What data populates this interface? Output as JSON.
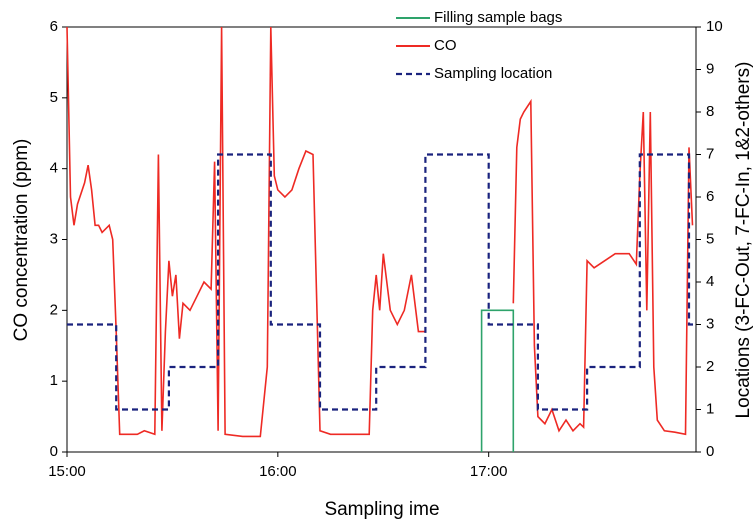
{
  "chart_data": {
    "type": "line",
    "xlabel": "Sampling ime",
    "ylabel": "CO concentration (ppm)",
    "y2label": "Locations (3-FC-Out, 7-FC-In, 1&2-others)",
    "xlim": [
      "15:00",
      "17:59"
    ],
    "xticks": [
      "15:00",
      "16:00",
      "17:00"
    ],
    "ylim": [
      0,
      6
    ],
    "yticks": [
      0,
      1,
      2,
      3,
      4,
      5,
      6
    ],
    "y2lim": [
      0,
      10
    ],
    "y2ticks": [
      0,
      1,
      2,
      3,
      4,
      5,
      6,
      7,
      8,
      9,
      10
    ],
    "series": [
      {
        "name": "Filling sample bags",
        "color": "#2ea36b",
        "style": "solid",
        "axis": "y",
        "x": [
          "16:58",
          "16:58",
          "17:07",
          "17:07"
        ],
        "values": [
          0,
          2,
          2,
          0
        ]
      },
      {
        "name": "CO",
        "color": "#ee2a24",
        "style": "solid",
        "axis": "y",
        "x": [
          "15:00",
          "15:01",
          "15:02",
          "15:03",
          "15:05",
          "15:06",
          "15:07",
          "15:08",
          "15:09",
          "15:10",
          "15:12",
          "15:13",
          "15:14",
          "15:15",
          "15:20",
          "15:22",
          "15:25",
          "15:26",
          "15:27",
          "15:28",
          "15:29",
          "15:30",
          "15:31",
          "15:32",
          "15:33",
          "15:35",
          "15:37",
          "15:39",
          "15:41",
          "15:42",
          "15:43",
          "15:44",
          "15:45",
          "15:50",
          "15:55",
          "15:57",
          "15:58",
          "15:59",
          "16:00",
          "16:02",
          "16:04",
          "16:06",
          "16:08",
          "16:10",
          "16:12",
          "16:15",
          "16:20",
          "16:26",
          "16:27",
          "16:28",
          "16:29",
          "16:30",
          "16:32",
          "16:34",
          "16:36",
          "16:38",
          "16:40",
          "16:42",
          "16:50",
          "17:07",
          "17:08",
          "17:09",
          "17:10",
          "17:12",
          "17:13",
          "17:14",
          "17:16",
          "17:18",
          "17:20",
          "17:22",
          "17:24",
          "17:26",
          "17:27",
          "17:28",
          "17:30",
          "17:33",
          "17:36",
          "17:40",
          "17:42",
          "17:43",
          "17:44",
          "17:45",
          "17:46",
          "17:47",
          "17:48",
          "17:50",
          "17:53",
          "17:56",
          "17:57",
          "17:58"
        ],
        "values": [
          6,
          3.6,
          3.2,
          3.5,
          3.8,
          4.05,
          3.7,
          3.2,
          3.2,
          3.1,
          3.2,
          3,
          1.7,
          0.25,
          0.25,
          0.3,
          0.25,
          4.2,
          0.3,
          1.7,
          2.7,
          2.2,
          2.5,
          1.6,
          2.1,
          2,
          2.2,
          2.4,
          2.3,
          4.1,
          0.3,
          6,
          0.25,
          0.22,
          0.22,
          1.2,
          6,
          3.9,
          3.7,
          3.6,
          3.7,
          4,
          4.25,
          4.2,
          0.3,
          0.25,
          0.25,
          0.25,
          2,
          2.5,
          2,
          2.8,
          2,
          1.8,
          2,
          2.5,
          1.7,
          1.7,
          null,
          2.1,
          4.3,
          4.7,
          4.8,
          4.95,
          1.5,
          0.5,
          0.4,
          0.6,
          0.3,
          0.45,
          0.3,
          0.4,
          0.35,
          2.7,
          2.6,
          2.7,
          2.8,
          2.8,
          2.65,
          3.9,
          4.8,
          2,
          4.8,
          1.2,
          0.45,
          0.3,
          0.28,
          0.25,
          4.3,
          3.2
        ]
      },
      {
        "name": "Sampling location",
        "color": "#1a237e",
        "style": "dashed",
        "axis": "y2",
        "x": [
          "15:00",
          "15:14",
          "15:14",
          "15:29",
          "15:29",
          "15:43",
          "15:43",
          "15:58",
          "15:58",
          "16:12",
          "16:12",
          "16:28",
          "16:28",
          "16:42",
          "16:42",
          "17:00",
          "17:00",
          "17:14",
          "17:14",
          "17:28",
          "17:28",
          "17:43",
          "17:43",
          "17:57",
          "17:57",
          "17:59"
        ],
        "values": [
          3,
          3,
          1,
          1,
          2,
          2,
          7,
          7,
          3,
          3,
          1,
          1,
          2,
          2,
          7,
          7,
          3,
          3,
          1,
          1,
          2,
          2,
          7,
          7,
          3,
          3
        ]
      }
    ]
  }
}
